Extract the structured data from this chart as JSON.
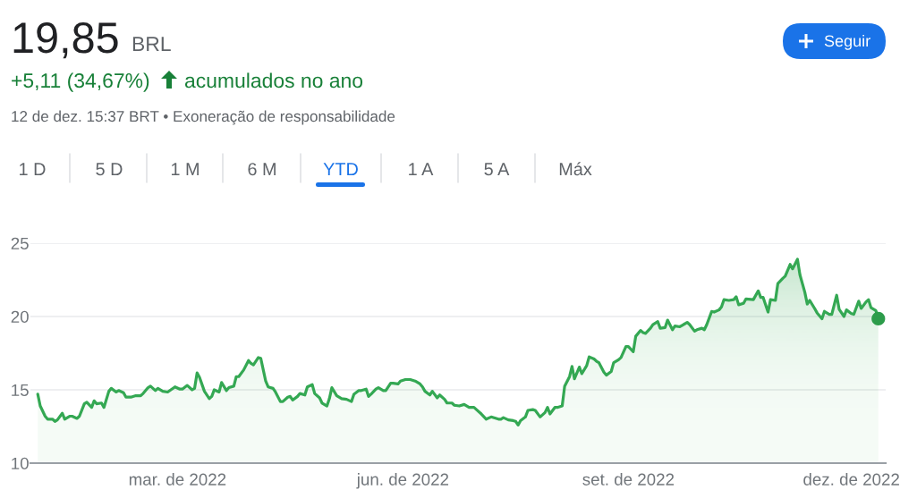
{
  "chart_data": {
    "type": "area",
    "title": "19,85",
    "annotations": [
      "BRL",
      "+5,11 (34,67%)",
      "acumulados no ano",
      "12 de dez. 15:37 BRT • Exoneração de responsabilidade",
      "1 D",
      "5 D",
      "1 M",
      "6 M",
      "YTD",
      "1 A",
      "5 A",
      "Máx",
      "Seguir"
    ],
    "x": [
      "2022-01-03",
      "2022-01-04",
      "2022-01-06",
      "2022-01-07",
      "2022-01-09",
      "2022-01-10",
      "2022-01-11",
      "2022-01-13",
      "2022-01-14",
      "2022-01-16",
      "2022-01-17",
      "2022-01-19",
      "2022-01-20",
      "2022-01-22",
      "2022-01-23",
      "2022-01-25",
      "2022-01-26",
      "2022-01-27",
      "2022-01-29",
      "2022-01-30",
      "2022-02-01",
      "2022-02-02",
      "2022-02-04",
      "2022-02-05",
      "2022-02-07",
      "2022-02-08",
      "2022-02-10",
      "2022-02-12",
      "2022-02-14",
      "2022-02-15",
      "2022-02-17",
      "2022-02-18",
      "2022-02-20",
      "2022-02-21",
      "2022-02-23",
      "2022-02-25",
      "2022-02-28",
      "2022-03-02",
      "2022-03-03",
      "2022-03-05",
      "2022-03-07",
      "2022-03-08",
      "2022-03-09",
      "2022-03-10",
      "2022-03-12",
      "2022-03-14",
      "2022-03-15",
      "2022-03-16",
      "2022-03-18",
      "2022-03-19",
      "2022-03-21",
      "2022-03-22",
      "2022-03-24",
      "2022-03-25",
      "2022-03-26",
      "2022-03-28",
      "2022-03-30",
      "2022-03-31",
      "2022-04-01",
      "2022-04-03",
      "2022-04-04",
      "2022-04-06",
      "2022-04-07",
      "2022-04-09",
      "2022-04-10",
      "2022-04-12",
      "2022-04-13",
      "2022-04-15",
      "2022-04-16",
      "2022-04-17",
      "2022-04-19",
      "2022-04-20",
      "2022-04-22",
      "2022-04-23",
      "2022-04-25",
      "2022-04-26",
      "2022-04-28",
      "2022-04-29",
      "2022-05-01",
      "2022-05-02",
      "2022-05-03",
      "2022-05-05",
      "2022-05-07",
      "2022-05-09",
      "2022-05-11",
      "2022-05-12",
      "2022-05-14",
      "2022-05-15",
      "2022-05-17",
      "2022-05-18",
      "2022-05-19",
      "2022-05-21",
      "2022-05-22",
      "2022-05-24",
      "2022-05-25",
      "2022-05-27",
      "2022-05-28",
      "2022-05-30",
      "2022-05-31",
      "2022-06-02",
      "2022-06-04",
      "2022-06-06",
      "2022-06-08",
      "2022-06-09",
      "2022-06-10",
      "2022-06-12",
      "2022-06-13",
      "2022-06-15",
      "2022-06-16",
      "2022-06-18",
      "2022-06-19",
      "2022-06-21",
      "2022-06-22",
      "2022-06-24",
      "2022-06-26",
      "2022-06-28",
      "2022-06-30",
      "2022-07-01",
      "2022-07-03",
      "2022-07-05",
      "2022-07-07",
      "2022-07-10",
      "2022-07-11",
      "2022-07-12",
      "2022-07-14",
      "2022-07-16",
      "2022-07-17",
      "2022-07-18",
      "2022-07-19",
      "2022-07-21",
      "2022-07-22",
      "2022-07-24",
      "2022-07-25",
      "2022-07-27",
      "2022-07-29",
      "2022-07-30",
      "2022-07-31",
      "2022-08-02",
      "2022-08-03",
      "2022-08-05",
      "2022-08-06",
      "2022-08-08",
      "2022-08-09",
      "2022-08-10",
      "2022-08-12",
      "2022-08-13",
      "2022-08-15",
      "2022-08-16",
      "2022-08-18",
      "2022-08-19",
      "2022-08-20",
      "2022-08-22",
      "2022-08-23",
      "2022-08-25",
      "2022-08-26",
      "2022-08-28",
      "2022-08-29",
      "2022-08-31",
      "2022-09-01",
      "2022-09-03",
      "2022-09-04",
      "2022-09-06",
      "2022-09-07",
      "2022-09-08",
      "2022-09-10",
      "2022-09-11",
      "2022-09-13",
      "2022-09-14",
      "2022-09-16",
      "2022-09-17",
      "2022-09-19",
      "2022-09-20",
      "2022-09-22",
      "2022-09-23",
      "2022-09-25",
      "2022-09-26",
      "2022-09-28",
      "2022-09-29",
      "2022-10-01",
      "2022-10-02",
      "2022-10-03",
      "2022-10-05",
      "2022-10-06",
      "2022-10-08",
      "2022-10-09",
      "2022-10-10",
      "2022-10-12",
      "2022-10-14",
      "2022-10-15",
      "2022-10-16",
      "2022-10-18",
      "2022-10-19",
      "2022-10-22",
      "2022-10-24",
      "2022-10-25",
      "2022-10-26",
      "2022-10-28",
      "2022-10-29",
      "2022-10-31",
      "2022-11-01",
      "2022-11-03",
      "2022-11-04",
      "2022-11-06",
      "2022-11-07",
      "2022-11-09",
      "2022-11-10",
      "2022-11-12",
      "2022-11-13",
      "2022-11-14",
      "2022-11-16",
      "2022-11-17",
      "2022-11-19",
      "2022-11-20",
      "2022-11-22",
      "2022-11-23",
      "2022-11-25",
      "2022-11-26",
      "2022-11-28",
      "2022-11-29",
      "2022-12-01",
      "2022-12-02",
      "2022-12-04",
      "2022-12-05",
      "2022-12-07",
      "2022-12-08",
      "2022-12-09",
      "2022-12-11",
      "2022-12-12"
    ],
    "series": [
      {
        "color": "#34a853",
        "values": [
          14.7,
          13.9,
          13.2,
          13.0,
          13.0,
          12.85,
          12.95,
          13.4,
          13.0,
          13.2,
          13.2,
          13.05,
          13.2,
          14.05,
          14.15,
          13.8,
          14.25,
          14.05,
          14.1,
          13.8,
          14.9,
          15.1,
          14.85,
          14.95,
          14.8,
          14.5,
          14.5,
          14.6,
          14.6,
          14.75,
          15.15,
          15.25,
          14.95,
          15.1,
          14.9,
          14.85,
          15.2,
          15.05,
          15.05,
          15.3,
          15.0,
          15.1,
          16.15,
          15.85,
          14.9,
          14.4,
          14.55,
          15.0,
          14.85,
          15.5,
          14.95,
          15.15,
          15.25,
          15.9,
          15.9,
          16.35,
          17.0,
          16.8,
          16.7,
          17.2,
          17.15,
          15.6,
          15.2,
          15.1,
          14.85,
          14.2,
          14.2,
          14.5,
          14.55,
          14.3,
          14.55,
          14.75,
          14.65,
          15.2,
          15.35,
          14.75,
          14.45,
          14.1,
          13.9,
          14.4,
          15.15,
          14.6,
          14.4,
          14.35,
          14.2,
          14.7,
          14.95,
          14.95,
          15.05,
          14.55,
          14.7,
          15.05,
          15.15,
          14.95,
          14.95,
          15.45,
          15.45,
          15.4,
          15.6,
          15.7,
          15.7,
          15.6,
          15.4,
          15.2,
          14.9,
          14.65,
          14.9,
          14.45,
          14.65,
          14.35,
          14.1,
          14.1,
          13.95,
          13.9,
          14.0,
          13.8,
          13.8,
          13.65,
          13.35,
          13.0,
          13.15,
          13.0,
          13.0,
          13.1,
          12.95,
          12.9,
          12.85,
          12.6,
          12.9,
          13.15,
          13.6,
          13.65,
          13.6,
          13.15,
          13.45,
          13.8,
          13.35,
          13.8,
          13.8,
          13.9,
          15.25,
          15.9,
          16.6,
          15.75,
          16.55,
          16.1,
          16.65,
          17.25,
          17.1,
          16.95,
          16.85,
          16.2,
          16.0,
          16.25,
          16.85,
          17.05,
          17.2,
          17.95,
          17.95,
          17.6,
          18.65,
          19.05,
          18.9,
          18.85,
          19.2,
          19.45,
          19.65,
          19.2,
          19.25,
          19.75,
          19.1,
          19.35,
          19.3,
          19.4,
          19.6,
          19.45,
          19.0,
          19.1,
          19.2,
          19.1,
          19.45,
          20.35,
          20.3,
          20.45,
          20.65,
          21.15,
          21.1,
          21.15,
          21.35,
          20.8,
          20.9,
          21.2,
          21.15,
          21.75,
          21.3,
          21.3,
          20.3,
          21.15,
          21.1,
          22.25,
          22.6,
          22.75,
          23.55,
          23.25,
          23.9,
          22.85,
          21.65,
          20.85,
          21.1,
          20.55,
          20.25,
          19.85,
          20.35,
          20.15,
          20.15,
          21.45,
          20.5,
          20.0,
          20.45,
          20.2,
          20.15,
          21.05,
          20.55,
          21.0,
          21.15,
          20.6,
          20.4,
          19.85
        ]
      },
      {
        "type": "scatter",
        "color": "#2d9c4b",
        "marker": "circle",
        "x": [
          "2022-12-12"
        ],
        "values": [
          19.85
        ]
      }
    ],
    "xlim": [
      "2021-12-31",
      "2022-12-15"
    ],
    "xticks": [
      {
        "value": "2022-03-01",
        "label": "mar. de 2022"
      },
      {
        "value": "2022-06-01",
        "label": "jun. de 2022"
      },
      {
        "value": "2022-09-01",
        "label": "set. de 2022"
      },
      {
        "value": "2022-12-01",
        "label": "dez. de 2022"
      }
    ],
    "ylim": [
      10,
      25
    ],
    "yticks": [
      10,
      15,
      20,
      25
    ],
    "grid": "y"
  }
}
